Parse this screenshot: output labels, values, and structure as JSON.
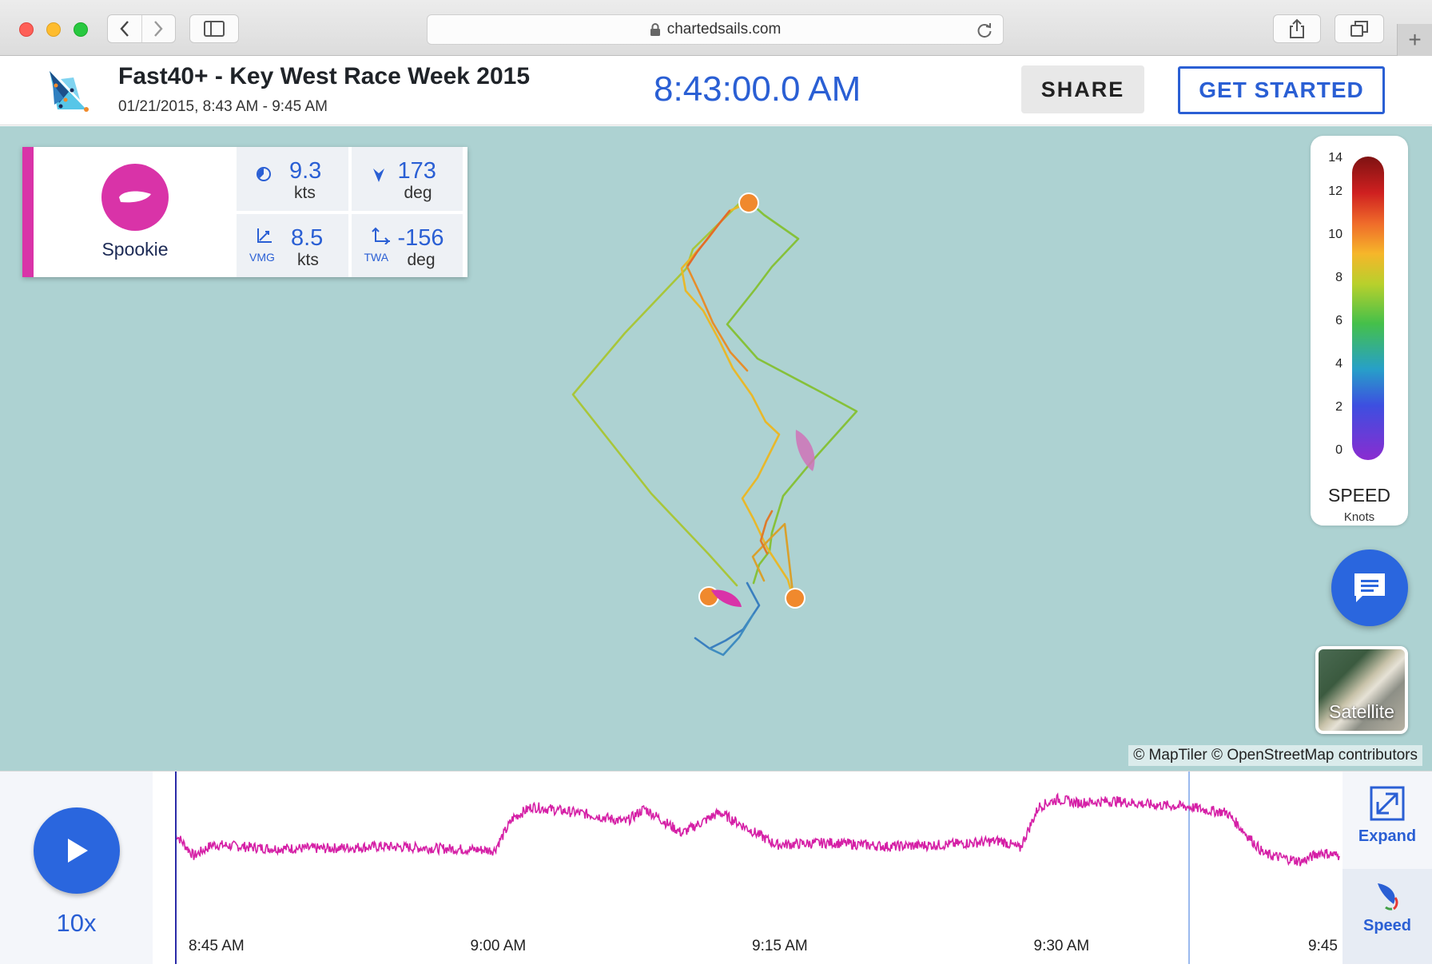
{
  "browser": {
    "url": "chartedsails.com"
  },
  "header": {
    "title": "Fast40+ - Key West Race Week 2015",
    "subtitle": "01/21/2015, 8:43 AM - 9:45 AM",
    "clock": "8:43:00.0 AM",
    "share_label": "SHARE",
    "get_started_label": "GET STARTED",
    "brand_color": "#2a5fd4"
  },
  "boat": {
    "name": "Spookie",
    "color": "#d933a8",
    "stats": {
      "sog": {
        "value": "9.3",
        "unit": "kts"
      },
      "cog": {
        "value": "173",
        "unit": "deg"
      },
      "vmg": {
        "label": "VMG",
        "value": "8.5",
        "unit": "kts"
      },
      "twa": {
        "label": "TWA",
        "value": "-156",
        "unit": "deg"
      }
    }
  },
  "legend": {
    "ticks": [
      "14",
      "12",
      "10",
      "8",
      "6",
      "4",
      "2",
      "0"
    ],
    "title": "SPEED",
    "unit": "Knots"
  },
  "map": {
    "attribution": "© MapTiler © OpenStreetMap contributors",
    "satellite_label": "Satellite",
    "water_color": "#add2d2"
  },
  "timeline": {
    "speed_multiplier": "10x",
    "time_labels": [
      "8:45 AM",
      "9:00 AM",
      "9:15 AM",
      "9:30 AM",
      "9:45"
    ],
    "expand_label": "Expand",
    "metric_label": "Speed",
    "chart_data": {
      "type": "line",
      "x": [
        "8:43",
        "8:44",
        "8:45",
        "8:48",
        "8:51",
        "8:54",
        "8:57",
        "9:00",
        "9:01",
        "9:02",
        "9:05",
        "9:07",
        "9:08",
        "9:10",
        "9:12",
        "9:15",
        "9:18",
        "9:21",
        "9:24",
        "9:27",
        "9:28",
        "9:29",
        "9:30",
        "9:31",
        "9:33",
        "9:35",
        "9:37",
        "9:38",
        "9:39",
        "9:41",
        "9:43",
        "9:44",
        "9:45"
      ],
      "series": [
        {
          "values": [
            5.8,
            4.6,
            5.2,
            5.0,
            5.0,
            5.1,
            5.0,
            4.9,
            6.6,
            7.2,
            6.8,
            6.4,
            7.1,
            5.8,
            6.9,
            5.2,
            5.3,
            5.1,
            5.2,
            5.4,
            5.0,
            7.2,
            7.6,
            7.4,
            7.5,
            7.3,
            7.2,
            7.0,
            6.9,
            4.7,
            4.3,
            4.8,
            4.6
          ]
        }
      ],
      "ylabel": "Speed",
      "current_time": "8:43",
      "secondary_marker": "9:37"
    }
  }
}
